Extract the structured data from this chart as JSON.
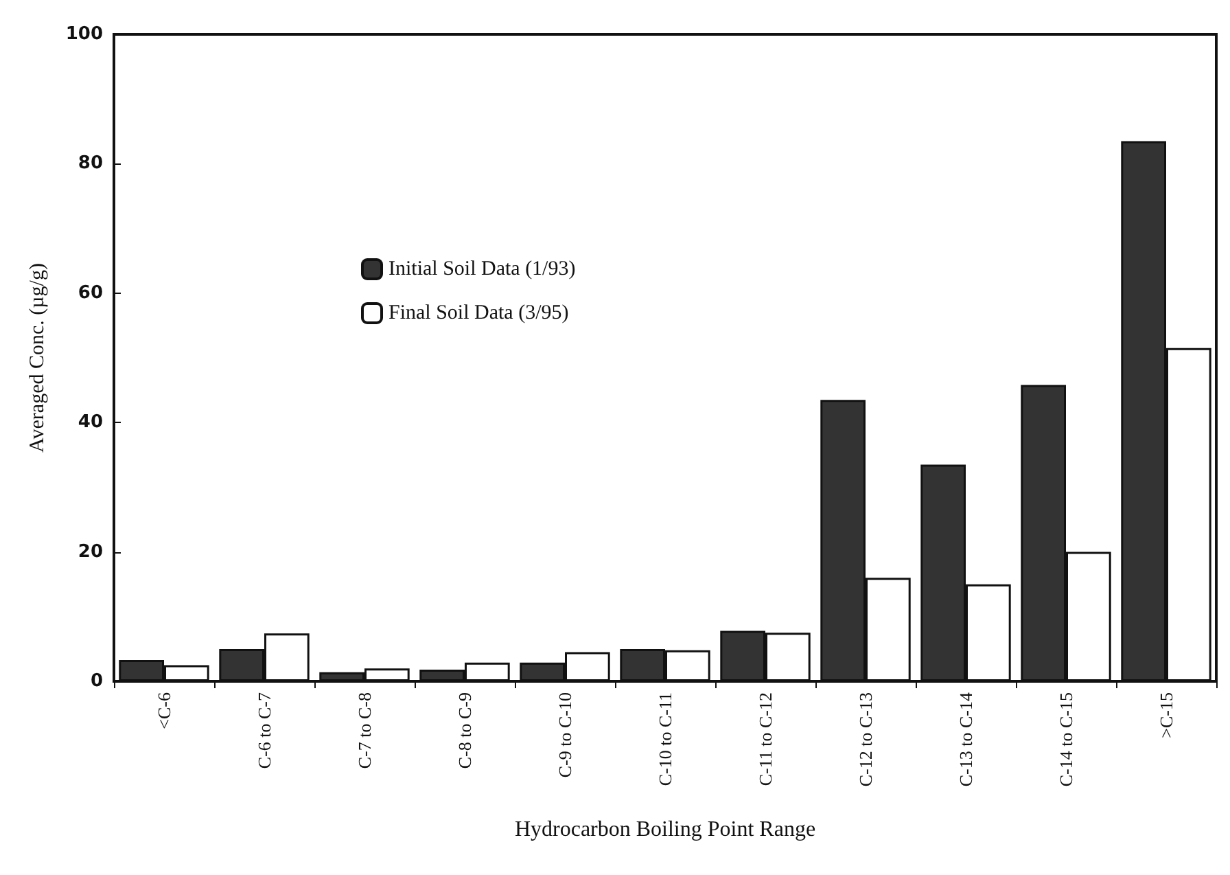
{
  "chart_data": {
    "type": "bar",
    "xlabel": "Hydrocarbon Boiling Point Range",
    "ylabel": "Averaged Conc. (µg/g)",
    "categories": [
      "<C-6",
      "C-6 to C-7",
      "C-7 to C-8",
      "C-8 to C-9",
      "C-9 to C-10",
      "C-10 to C-11",
      "C-11 to C-12",
      "C-12 to C-13",
      "C-13 to C-14",
      "C-14 to C-15",
      ">C-15"
    ],
    "series": [
      {
        "name": "Initial Soil Data (1/93)",
        "color": "#333333",
        "values": [
          3.3,
          5,
          1.4,
          1.8,
          2.9,
          5,
          7.8,
          43.5,
          33.5,
          45.8,
          83.5
        ]
      },
      {
        "name": "Final Soil Data (3/95)",
        "color": "#ffffff",
        "values": [
          2.5,
          7.4,
          2,
          2.9,
          4.5,
          4.8,
          7.5,
          16,
          15,
          20,
          51.5
        ]
      }
    ],
    "ylim": [
      0,
      100
    ],
    "yticks": [
      0,
      20,
      40,
      60,
      80,
      100
    ],
    "grid": false,
    "legend": "top left"
  }
}
